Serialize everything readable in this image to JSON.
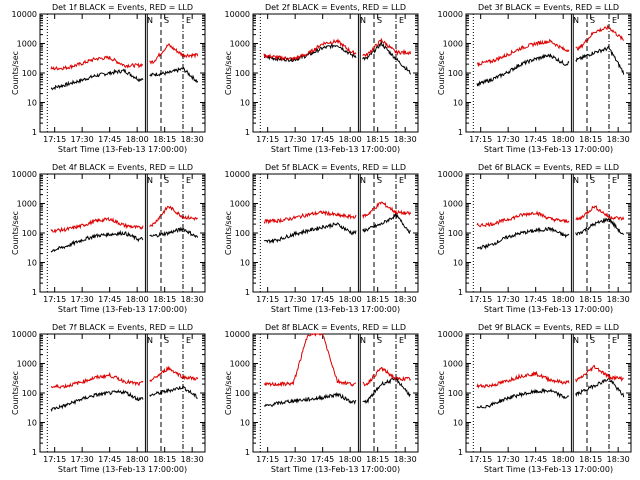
{
  "colors": {
    "events": "#000000",
    "lld": "#dd0000",
    "axes": "#000000",
    "background": "#ffffff"
  },
  "chart_data": [
    {
      "type": "line",
      "title": "Det 1f BLACK = Events, RED = LLD",
      "xlabel": "Start Time (13-Feb-13 17:00:00)",
      "ylabel": "Counts/sec",
      "ylim": [
        1,
        10000
      ],
      "yscale": "log",
      "xlim": [
        "17:07",
        "18:37"
      ],
      "xticks": [
        "17:15",
        "17:30",
        "17:45",
        "18:00",
        "18:15",
        "18:30"
      ],
      "yticks": [
        "1",
        "10",
        "100",
        "1000",
        "10000"
      ],
      "letters": [
        "N",
        "S",
        "E"
      ],
      "series": [
        {
          "name": "Events",
          "color": "#000000",
          "values": [
            30,
            40,
            55,
            80,
            100,
            120,
            60,
            90,
            100,
            140,
            50
          ]
        },
        {
          "name": "LLD",
          "color": "#dd0000",
          "values": [
            140,
            150,
            200,
            300,
            330,
            180,
            180,
            250,
            900,
            400,
            400
          ]
        }
      ]
    },
    {
      "type": "line",
      "title": "Det 2f BLACK = Events, RED = LLD",
      "xlabel": "Start Time (13-Feb-13 17:00:00)",
      "ylabel": "Counts/sec",
      "ylim": [
        1,
        10000
      ],
      "yscale": "log",
      "xlim": [
        "17:07",
        "18:37"
      ],
      "xticks": [
        "17:15",
        "17:30",
        "17:45",
        "18:00",
        "18:15",
        "18:30"
      ],
      "yticks": [
        "1",
        "10",
        "100",
        "1000",
        "10000"
      ],
      "letters": [
        "N",
        "S",
        "E"
      ],
      "series": [
        {
          "name": "Events",
          "color": "#000000",
          "values": [
            350,
            300,
            280,
            400,
            700,
            900,
            400,
            300,
            1000,
            300,
            100
          ]
        },
        {
          "name": "LLD",
          "color": "#dd0000",
          "values": [
            400,
            330,
            300,
            450,
            1000,
            1200,
            500,
            400,
            1300,
            500,
            500
          ]
        }
      ]
    },
    {
      "type": "line",
      "title": "Det 3f BLACK = Events, RED = LLD",
      "xlabel": "Start Time (13-Feb-13 17:00:00)",
      "ylabel": "Counts/sec",
      "ylim": [
        1,
        10000
      ],
      "yscale": "log",
      "xlim": [
        "17:07",
        "18:37"
      ],
      "xticks": [
        "17:15",
        "17:30",
        "17:45",
        "18:00",
        "18:15",
        "18:30"
      ],
      "yticks": [
        "1",
        "10",
        "100",
        "1000",
        "10000"
      ],
      "letters": [
        "N",
        "S",
        "E"
      ],
      "series": [
        {
          "name": "Events",
          "color": "#000000",
          "values": [
            40,
            60,
            100,
            200,
            300,
            400,
            200,
            300,
            500,
            700,
            100
          ]
        },
        {
          "name": "LLD",
          "color": "#dd0000",
          "values": [
            200,
            250,
            400,
            700,
            1000,
            1200,
            600,
            700,
            2500,
            3500,
            1300
          ]
        }
      ]
    },
    {
      "type": "line",
      "title": "Det 4f BLACK = Events, RED = LLD",
      "xlabel": "Start Time (13-Feb-13 17:00:00)",
      "ylabel": "Counts/sec",
      "ylim": [
        1,
        10000
      ],
      "yscale": "log",
      "xlim": [
        "17:07",
        "18:37"
      ],
      "xticks": [
        "17:15",
        "17:30",
        "17:45",
        "18:00",
        "18:15",
        "18:30"
      ],
      "yticks": [
        "1",
        "10",
        "100",
        "1000",
        "10000"
      ],
      "letters": [
        "N",
        "S",
        "E"
      ],
      "series": [
        {
          "name": "Events",
          "color": "#000000",
          "values": [
            25,
            35,
            55,
            80,
            90,
            100,
            60,
            80,
            100,
            140,
            70
          ]
        },
        {
          "name": "LLD",
          "color": "#dd0000",
          "values": [
            120,
            130,
            170,
            250,
            300,
            180,
            150,
            200,
            800,
            350,
            300
          ]
        }
      ]
    },
    {
      "type": "line",
      "title": "Det 5f BLACK = Events, RED = LLD",
      "xlabel": "Start Time (13-Feb-13 17:00:00)",
      "ylabel": "Counts/sec",
      "ylim": [
        1,
        10000
      ],
      "yscale": "log",
      "xlim": [
        "17:07",
        "18:37"
      ],
      "xticks": [
        "17:15",
        "17:30",
        "17:45",
        "18:00",
        "18:15",
        "18:30"
      ],
      "yticks": [
        "1",
        "10",
        "100",
        "1000",
        "10000"
      ],
      "letters": [
        "N",
        "S",
        "E"
      ],
      "series": [
        {
          "name": "Events",
          "color": "#000000",
          "values": [
            50,
            60,
            90,
            120,
            160,
            200,
            100,
            130,
            200,
            400,
            100
          ]
        },
        {
          "name": "LLD",
          "color": "#dd0000",
          "values": [
            250,
            260,
            320,
            420,
            500,
            400,
            350,
            400,
            1100,
            500,
            450
          ]
        }
      ]
    },
    {
      "type": "line",
      "title": "Det 6f BLACK = Events, RED = LLD",
      "xlabel": "Start Time (13-Feb-13 17:00:00)",
      "ylabel": "Counts/sec",
      "ylim": [
        1,
        10000
      ],
      "yscale": "log",
      "xlim": [
        "17:07",
        "18:37"
      ],
      "xticks": [
        "17:15",
        "17:30",
        "17:45",
        "18:00",
        "18:15",
        "18:30"
      ],
      "yticks": [
        "1",
        "10",
        "100",
        "1000",
        "10000"
      ],
      "letters": [
        "N",
        "S",
        "E"
      ],
      "series": [
        {
          "name": "Events",
          "color": "#000000",
          "values": [
            30,
            40,
            70,
            100,
            120,
            140,
            80,
            100,
            200,
            300,
            80
          ]
        },
        {
          "name": "LLD",
          "color": "#dd0000",
          "values": [
            180,
            200,
            280,
            400,
            500,
            300,
            250,
            300,
            800,
            350,
            300
          ]
        }
      ]
    },
    {
      "type": "line",
      "title": "Det 7f BLACK = Events, RED = LLD",
      "xlabel": "Start Time (13-Feb-13 17:00:00)",
      "ylabel": "Counts/sec",
      "ylim": [
        1,
        10000
      ],
      "yscale": "log",
      "xlim": [
        "17:07",
        "18:37"
      ],
      "xticks": [
        "17:15",
        "17:30",
        "17:45",
        "18:00",
        "18:15",
        "18:30"
      ],
      "yticks": [
        "1",
        "10",
        "100",
        "1000",
        "10000"
      ],
      "letters": [
        "N",
        "S",
        "E"
      ],
      "series": [
        {
          "name": "Events",
          "color": "#000000",
          "values": [
            28,
            38,
            60,
            85,
            100,
            110,
            60,
            90,
            120,
            160,
            70
          ]
        },
        {
          "name": "LLD",
          "color": "#dd0000",
          "values": [
            160,
            170,
            230,
            330,
            400,
            250,
            200,
            300,
            700,
            350,
            300
          ]
        }
      ]
    },
    {
      "type": "line",
      "title": "Det 8f BLACK = Events, RED = LLD",
      "xlabel": "Start Time (13-Feb-13 17:00:00)",
      "ylabel": "Counts/sec",
      "ylim": [
        1,
        10000
      ],
      "yscale": "log",
      "xlim": [
        "17:07",
        "18:37"
      ],
      "xticks": [
        "17:15",
        "17:30",
        "17:45",
        "18:00",
        "18:15",
        "18:30"
      ],
      "yticks": [
        "1",
        "10",
        "100",
        "1000",
        "10000"
      ],
      "letters": [
        "N",
        "S",
        "E"
      ],
      "series": [
        {
          "name": "Events",
          "color": "#000000",
          "values": [
            35,
            45,
            55,
            60,
            70,
            90,
            50,
            50,
            200,
            300,
            80
          ]
        },
        {
          "name": "LLD",
          "color": "#dd0000",
          "values": [
            190,
            200,
            210,
            10000,
            10000,
            250,
            200,
            200,
            700,
            300,
            300
          ]
        }
      ]
    },
    {
      "type": "line",
      "title": "Det 9f BLACK = Events, RED = LLD",
      "xlabel": "Start Time (13-Feb-13 17:00:00)",
      "ylabel": "Counts/sec",
      "ylim": [
        1,
        10000
      ],
      "yscale": "log",
      "xlim": [
        "17:07",
        "18:37"
      ],
      "xticks": [
        "17:15",
        "17:30",
        "17:45",
        "18:00",
        "18:15",
        "18:30"
      ],
      "yticks": [
        "1",
        "10",
        "100",
        "1000",
        "10000"
      ],
      "letters": [
        "N",
        "S",
        "E"
      ],
      "series": [
        {
          "name": "Events",
          "color": "#000000",
          "values": [
            30,
            40,
            65,
            90,
            110,
            120,
            70,
            100,
            180,
            300,
            80
          ]
        },
        {
          "name": "LLD",
          "color": "#dd0000",
          "values": [
            170,
            180,
            250,
            380,
            450,
            280,
            220,
            300,
            800,
            350,
            300
          ]
        }
      ]
    }
  ]
}
